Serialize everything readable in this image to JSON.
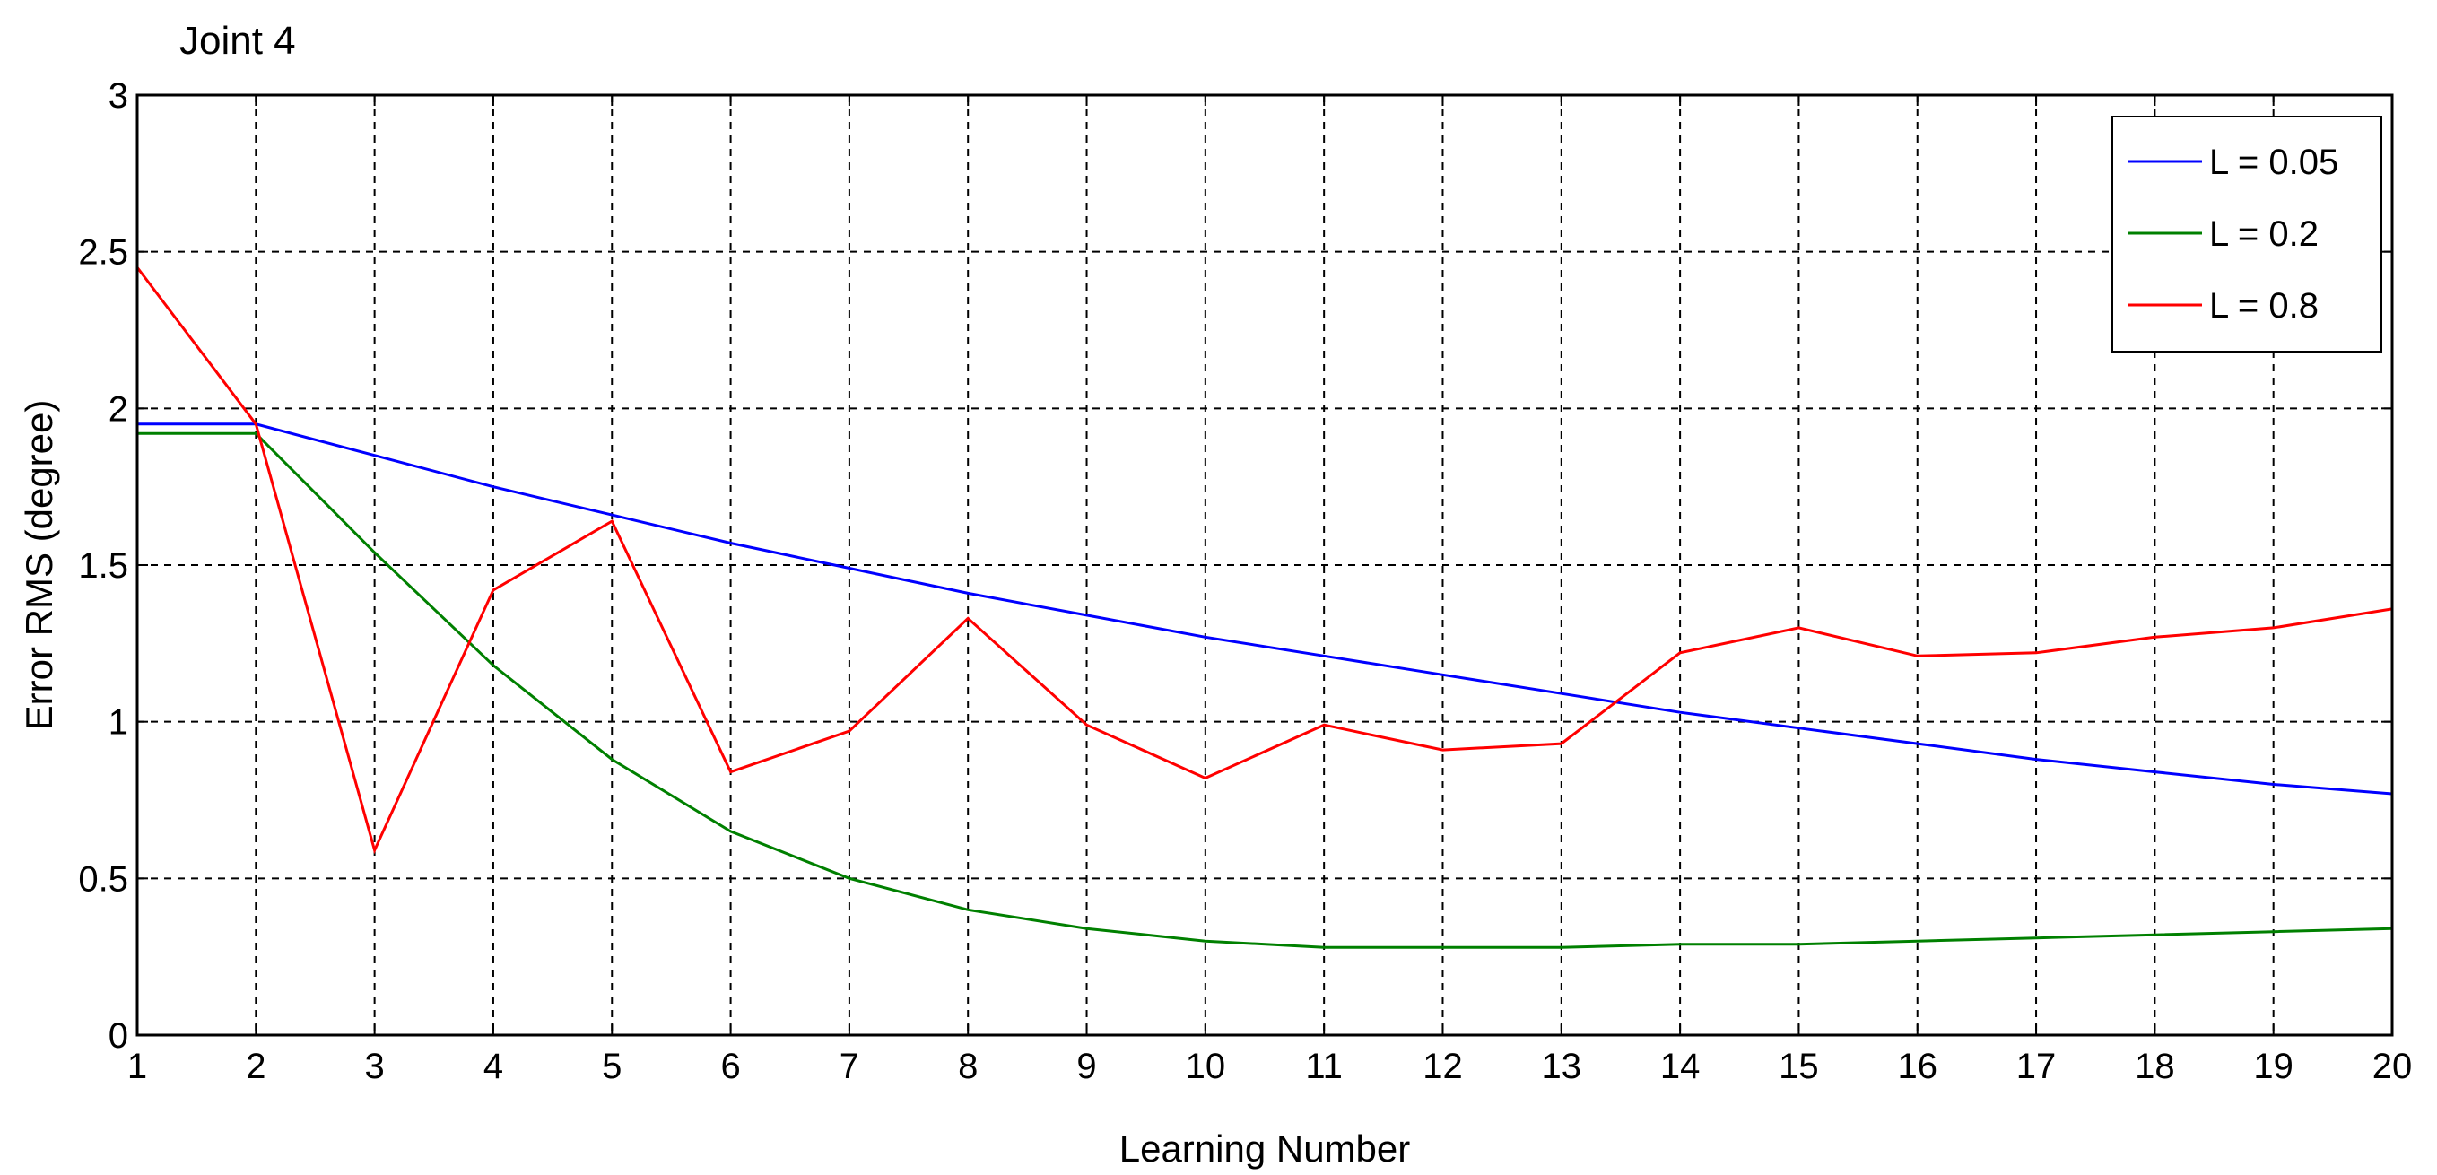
{
  "chart_data": {
    "type": "line",
    "title": "Joint 4",
    "xlabel": "Learning Number",
    "ylabel": "Error RMS (degree)",
    "xlim": [
      1,
      20
    ],
    "ylim": [
      0,
      3
    ],
    "grid": true,
    "legend_position": "top-right",
    "x": [
      1,
      2,
      3,
      4,
      5,
      6,
      7,
      8,
      9,
      10,
      11,
      12,
      13,
      14,
      15,
      16,
      17,
      18,
      19,
      20
    ],
    "x_ticks": [
      "1",
      "2",
      "3",
      "4",
      "5",
      "6",
      "7",
      "8",
      "9",
      "10",
      "11",
      "12",
      "13",
      "14",
      "15",
      "16",
      "17",
      "18",
      "19",
      "20"
    ],
    "y_ticks": [
      {
        "value": 0,
        "label": "0"
      },
      {
        "value": 0.5,
        "label": "0.5"
      },
      {
        "value": 1,
        "label": "1"
      },
      {
        "value": 1.5,
        "label": "1.5"
      },
      {
        "value": 2,
        "label": "2"
      },
      {
        "value": 2.5,
        "label": "2.5"
      },
      {
        "value": 3,
        "label": "3"
      }
    ],
    "series": [
      {
        "name": "L = 0.05",
        "color": "#0000ff",
        "values": [
          1.95,
          1.95,
          1.85,
          1.75,
          1.66,
          1.57,
          1.49,
          1.41,
          1.34,
          1.27,
          1.21,
          1.15,
          1.09,
          1.03,
          0.98,
          0.93,
          0.88,
          0.84,
          0.8,
          0.77
        ]
      },
      {
        "name": "L = 0.2",
        "color": "#008000",
        "values": [
          1.92,
          1.92,
          1.54,
          1.18,
          0.88,
          0.65,
          0.5,
          0.4,
          0.34,
          0.3,
          0.28,
          0.28,
          0.28,
          0.29,
          0.29,
          0.3,
          0.31,
          0.32,
          0.33,
          0.34
        ]
      },
      {
        "name": "L = 0.8",
        "color": "#ff0000",
        "values": [
          2.45,
          1.95,
          0.59,
          1.42,
          1.64,
          0.84,
          0.97,
          1.33,
          0.99,
          0.82,
          0.99,
          0.91,
          0.93,
          1.22,
          1.3,
          1.21,
          1.22,
          1.27,
          1.3,
          1.36
        ]
      }
    ]
  }
}
